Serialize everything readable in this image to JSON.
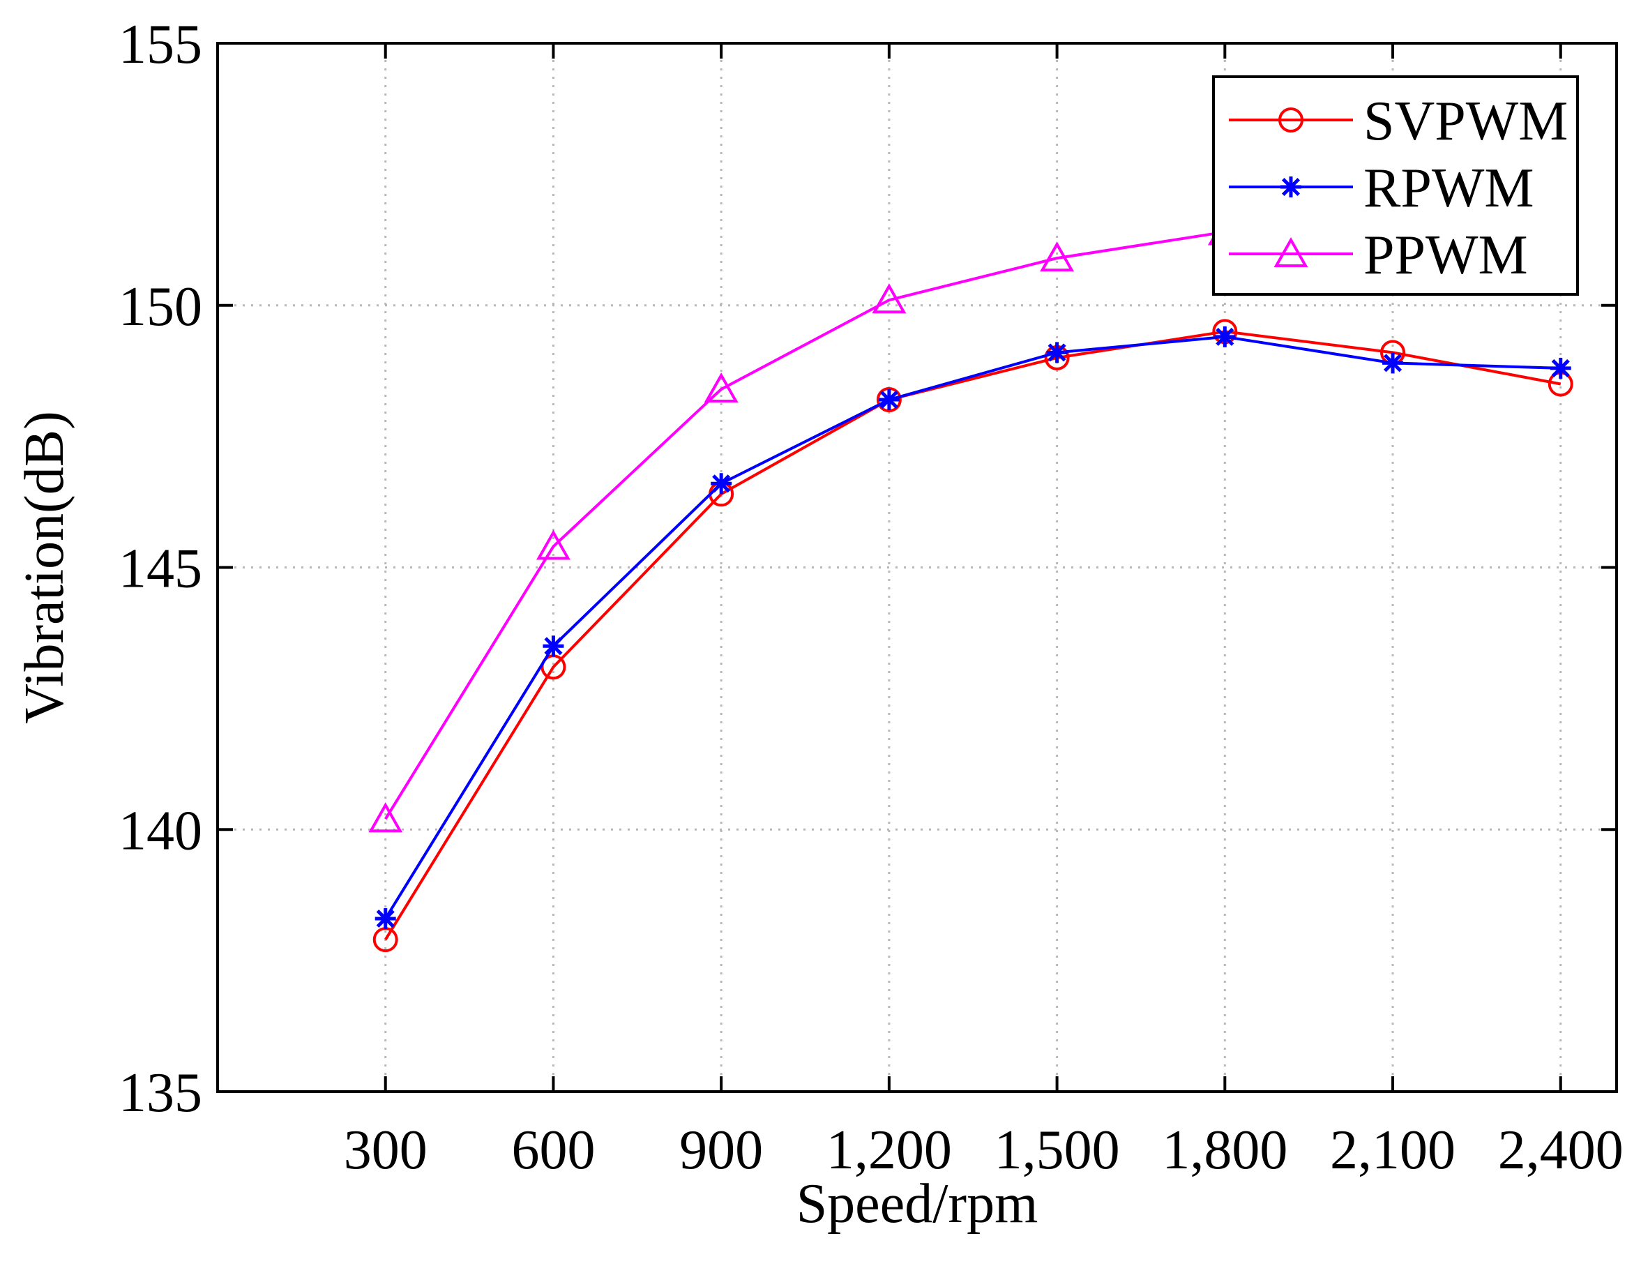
{
  "chart_data": {
    "type": "line",
    "title": "",
    "xlabel": "Speed/rpm",
    "ylabel": "Vibration(dB)",
    "x": [
      300,
      600,
      900,
      1200,
      1500,
      1800,
      2100,
      2400
    ],
    "x_tick_labels": [
      "300",
      "600",
      "900",
      "1,200",
      "1,500",
      "1,800",
      "2,100",
      "2,400"
    ],
    "xlim": [
      0,
      2500
    ],
    "ylim": [
      135,
      155
    ],
    "y_ticks": [
      135,
      140,
      145,
      150,
      155
    ],
    "y_tick_labels": [
      "135",
      "140",
      "145",
      "150",
      "155"
    ],
    "grid": true,
    "legend_position": "top-right",
    "series": [
      {
        "name": "SVPWM",
        "color": "#ff0000",
        "marker": "circle",
        "values": [
          137.9,
          143.1,
          146.4,
          148.2,
          149.0,
          149.5,
          149.1,
          148.5
        ]
      },
      {
        "name": "RPWM",
        "color": "#0000ff",
        "marker": "star",
        "values": [
          138.3,
          143.5,
          146.6,
          148.2,
          149.1,
          149.4,
          148.9,
          148.8
        ]
      },
      {
        "name": "PPWM",
        "color": "#ff00ff",
        "marker": "triangle",
        "values": [
          140.2,
          145.4,
          148.4,
          150.1,
          150.9,
          151.4,
          null,
          null
        ]
      }
    ]
  }
}
